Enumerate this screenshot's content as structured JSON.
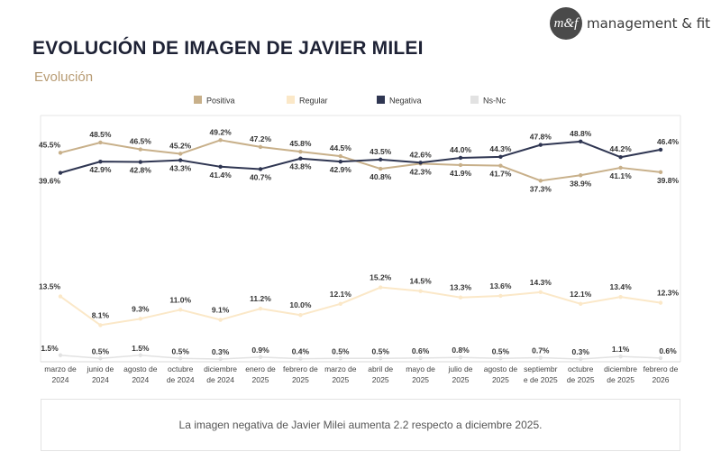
{
  "brand": {
    "logo_mark": "m&f",
    "name": "management & fit"
  },
  "title": "EVOLUCIÓN DE IMAGEN DE JAVIER MILEI",
  "subtitle": "Evolución",
  "note": "La imagen negativa de Javier Milei aumenta 2.2 respecto a diciembre 2025.",
  "chart_data": {
    "type": "line",
    "title": "EVOLUCIÓN DE IMAGEN DE JAVIER MILEI",
    "ylabel": "%",
    "legend_position": "top",
    "categories": [
      [
        "marzo de",
        "2024"
      ],
      [
        "junio de",
        "2024"
      ],
      [
        "agosto de",
        "2024"
      ],
      [
        "octubre",
        "de 2024"
      ],
      [
        "diciembre",
        "de 2024"
      ],
      [
        "enero de",
        "2025"
      ],
      [
        "febrero de",
        "2025"
      ],
      [
        "marzo de",
        "2025"
      ],
      [
        "abril de",
        "2025"
      ],
      [
        "mayo de",
        "2025"
      ],
      [
        "julio de",
        "2025"
      ],
      [
        "agosto de",
        "2025"
      ],
      [
        "septiembr",
        "e de 2025"
      ],
      [
        "octubre",
        "de 2025"
      ],
      [
        "diciembre",
        "de 2025"
      ],
      [
        "febrero de",
        "2026"
      ]
    ],
    "series": [
      {
        "name": "Positiva",
        "color": "#c8b08a",
        "values": [
          45.5,
          48.5,
          46.5,
          45.2,
          49.2,
          47.2,
          45.8,
          44.5,
          40.8,
          42.3,
          41.9,
          41.7,
          37.3,
          38.9,
          41.1,
          39.8
        ],
        "labels": [
          "45.5%",
          "48.5%",
          "46.5%",
          "45.2%",
          "49.2%",
          "47.2%",
          "45.8%",
          "44.5%",
          "40.8%",
          "42.3%",
          "41.9%",
          "41.7%",
          "37.3%",
          "38.9%",
          "41.1%",
          "39.8%"
        ]
      },
      {
        "name": "Regular",
        "color": "#fbe8c8",
        "values": [
          13.5,
          8.1,
          9.3,
          11.0,
          9.1,
          11.2,
          10.0,
          12.1,
          15.2,
          14.5,
          13.3,
          13.6,
          14.3,
          12.1,
          13.4,
          12.3
        ],
        "labels": [
          "13.5%",
          "8.1%",
          "9.3%",
          "11.0%",
          "9.1%",
          "11.2%",
          "10.0%",
          "12.1%",
          "15.2%",
          "14.5%",
          "13.3%",
          "13.6%",
          "14.3%",
          "12.1%",
          "13.4%",
          "12.3%"
        ]
      },
      {
        "name": "Negativa",
        "color": "#2f3652",
        "values": [
          39.6,
          42.9,
          42.8,
          43.3,
          41.4,
          40.7,
          43.8,
          42.9,
          43.5,
          42.6,
          44.0,
          44.3,
          47.8,
          48.8,
          44.2,
          46.4
        ],
        "labels": [
          "39.6%",
          "42.9%",
          "42.8%",
          "43.3%",
          "41.4%",
          "40.7%",
          "43.8%",
          "42.9%",
          "43.5%",
          "42.6%",
          "44.0%",
          "44.3%",
          "47.8%",
          "48.8%",
          "44.2%",
          "46.4%"
        ]
      },
      {
        "name": "Ns-Nc",
        "color": "#e2e2e2",
        "values": [
          1.5,
          0.5,
          1.5,
          0.5,
          0.3,
          0.9,
          0.4,
          0.5,
          0.5,
          0.6,
          0.8,
          0.5,
          0.7,
          0.3,
          1.1,
          0.6
        ],
        "labels": [
          "1.5%",
          "0.5%",
          "1.5%",
          "0.5%",
          "0.3%",
          "0.9%",
          "0.4%",
          "0.5%",
          "0.5%",
          "0.6%",
          "0.8%",
          "0.5%",
          "0.7%",
          "0.3%",
          "1.1%",
          "0.6%"
        ]
      }
    ]
  }
}
